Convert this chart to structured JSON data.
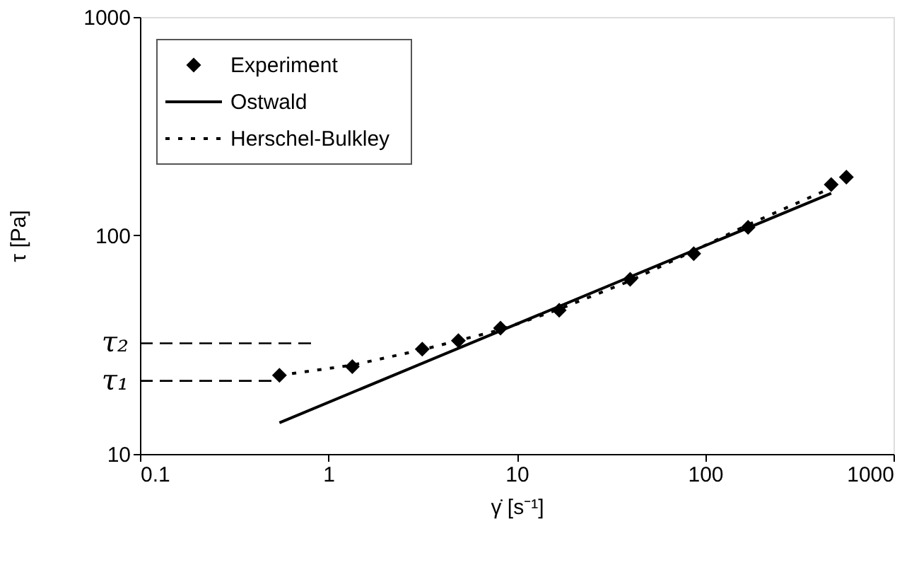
{
  "chart_data": {
    "type": "scatter",
    "xlabel": "γ̇ [s⁻¹]",
    "ylabel": "τ [Pa]",
    "log": "xy",
    "xlim": [
      0.1,
      1000
    ],
    "xticks": [
      0.1,
      1,
      10,
      100,
      1000
    ],
    "ylim": [
      10,
      1000
    ],
    "yticks": [
      10,
      100,
      1000
    ],
    "grid": false,
    "legend": "top left",
    "series": [
      {
        "name": "Experiment",
        "marker": "diamond",
        "color": "#000000",
        "x": [
          0.55,
          1.34,
          3.15,
          4.9,
          8.2,
          16.8,
          40,
          87,
          169,
          467,
          562
        ],
        "values": [
          22.9,
          25.1,
          30.2,
          33,
          37.7,
          45.5,
          63,
          82.6,
          109,
          171,
          185
        ]
      },
      {
        "name": "Ostwald",
        "type": "line",
        "line_style": "solid",
        "color": "#000000",
        "x": [
          0.55,
          467
        ],
        "values": [
          13.9,
          156
        ]
      },
      {
        "name": "Herschel-Bulkley",
        "type": "line",
        "line_style": "dotted",
        "color": "#000000",
        "x": [
          0.55,
          1.34,
          3.15,
          8.2,
          16.8,
          40,
          87,
          169,
          467
        ],
        "values": [
          22.9,
          25.5,
          30,
          37,
          46,
          62,
          85,
          112,
          165
        ]
      }
    ],
    "ref_lines": [
      {
        "axis": "y",
        "value": 21.6,
        "label": "τ₁",
        "line_style": "dashed",
        "color": "#000000"
      },
      {
        "axis": "y",
        "value": 32.1,
        "label": "τ₂",
        "line_style": "dashed",
        "color": "#000000"
      }
    ]
  }
}
